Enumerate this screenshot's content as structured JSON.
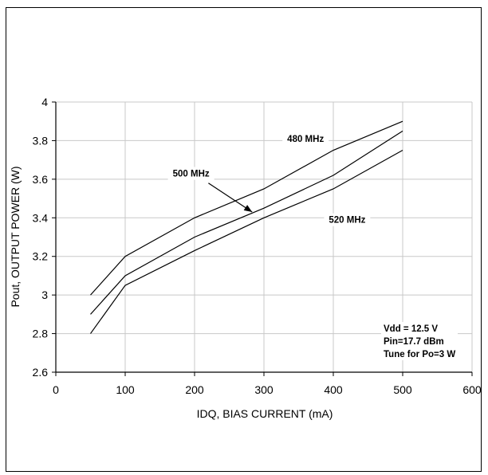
{
  "chart_data": {
    "type": "line",
    "xlabel": "IDQ, BIAS CURRENT (mA)",
    "ylabel": "Pout, OUTPUT POWER (W)",
    "xlim": [
      0,
      600
    ],
    "ylim": [
      2.6,
      4.0
    ],
    "x_ticks": [
      "0",
      "100",
      "200",
      "300",
      "400",
      "500",
      "600"
    ],
    "y_ticks": [
      "2.6",
      "2.8",
      "3",
      "3.2",
      "3.4",
      "3.6",
      "3.8",
      "4"
    ],
    "x_tick_values": [
      0,
      100,
      200,
      300,
      400,
      500,
      600
    ],
    "y_tick_values": [
      2.6,
      2.8,
      3.0,
      3.2,
      3.4,
      3.6,
      3.8,
      4.0
    ],
    "grid": true,
    "x": [
      50,
      100,
      200,
      300,
      400,
      500
    ],
    "series": [
      {
        "name": "480 MHz",
        "values": [
          3.0,
          3.2,
          3.4,
          3.55,
          3.75,
          3.9
        ]
      },
      {
        "name": "500 MHz",
        "values": [
          2.9,
          3.1,
          3.3,
          3.45,
          3.62,
          3.85
        ]
      },
      {
        "name": "520 MHz",
        "values": [
          2.8,
          3.05,
          3.23,
          3.4,
          3.55,
          3.75
        ]
      }
    ],
    "series_labels": [
      {
        "text": "480 MHz",
        "x": 360,
        "y": 3.81
      },
      {
        "text": "500 MHz",
        "x": 195,
        "y": 3.63
      },
      {
        "text": "520 MHz",
        "x": 420,
        "y": 3.39
      }
    ],
    "arrow": {
      "from": [
        220,
        3.58
      ],
      "to": [
        283,
        3.43
      ]
    },
    "annotation": [
      "Vdd = 12.5 V",
      "Pin=17.7 dBm",
      "Tune for Po=3 W"
    ]
  }
}
